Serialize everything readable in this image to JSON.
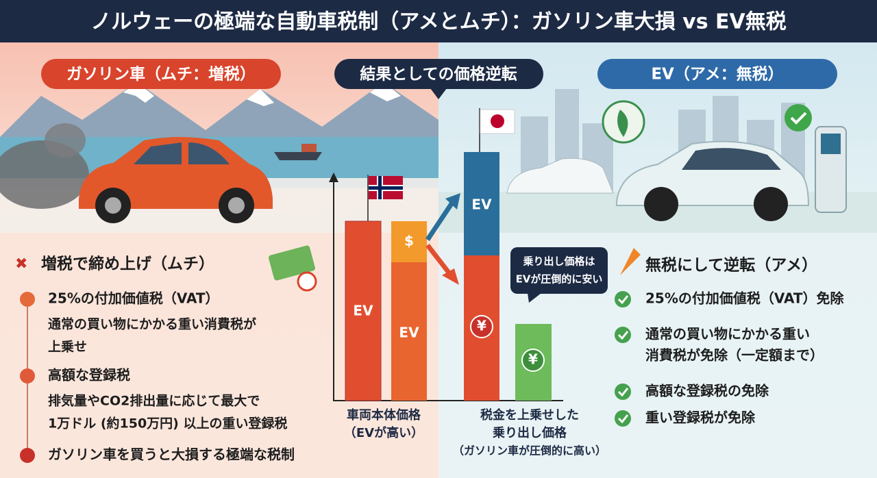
{
  "title": "ノルウェーの極端な自動車税制（アメとムチ）：ガソリン車大損 vs EV無税",
  "gasoline": {
    "badge": "ガソリン車（ムチ：増税）",
    "heading": "増税で締め上げ（ムチ）",
    "items": [
      {
        "title": "25%の付加価値税（VAT）",
        "detail": [
          "通常の買い物にかかる重い消費税が",
          "上乗せ"
        ]
      },
      {
        "title": "高額な登録税",
        "detail": [
          "排気量やCO2排出量に応じて最大で",
          "1万ドル (約150万円) 以上の重い登録税"
        ]
      },
      {
        "title": "ガソリン車を買うと大損する極端な税制",
        "detail": []
      }
    ]
  },
  "center": {
    "badge": "結果としての価格逆転",
    "bar_labels": [
      "EV",
      "$",
      "EV",
      "EV",
      "¥",
      "¥"
    ],
    "callout": [
      "乗り出し価格は",
      "EVが圧倒的に安い"
    ],
    "captions": [
      [
        "車両本体価格",
        "（EVが高い）"
      ],
      [
        "税金を上乗せした",
        "乗り出し価格",
        "（ガソリン車が圧倒的に高い）"
      ]
    ]
  },
  "ev": {
    "badge": "EV（アメ：無税）",
    "heading": "無税にして逆転（アメ）",
    "items": [
      [
        "25%の付加価値税（VAT）免除"
      ],
      [
        "通常の買い物にかかる重い",
        "消費税が免除（一定額まで）"
      ],
      [
        "高額な登録税の免除"
      ],
      [
        "重い登録税が免除"
      ]
    ]
  }
}
